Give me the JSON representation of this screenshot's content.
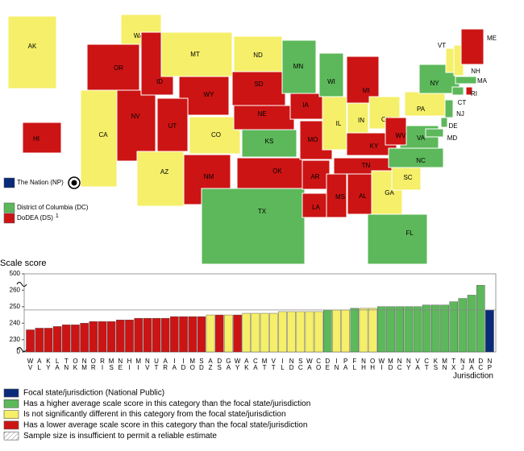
{
  "map": {
    "states": [
      {
        "label": "WA",
        "color": "#f5ef6a"
      },
      {
        "label": "OR",
        "color": "#cc1414"
      },
      {
        "label": "CA",
        "color": "#f5ef6a"
      },
      {
        "label": "NV",
        "color": "#cc1414"
      },
      {
        "label": "ID",
        "color": "#cc1414"
      },
      {
        "label": "MT",
        "color": "#f5ef6a"
      },
      {
        "label": "WY",
        "color": "#cc1414"
      },
      {
        "label": "UT",
        "color": "#cc1414"
      },
      {
        "label": "AZ",
        "color": "#f5ef6a"
      },
      {
        "label": "CO",
        "color": "#f5ef6a"
      },
      {
        "label": "NM",
        "color": "#cc1414"
      },
      {
        "label": "ND",
        "color": "#f5ef6a"
      },
      {
        "label": "SD",
        "color": "#cc1414"
      },
      {
        "label": "NE",
        "color": "#cc1414"
      },
      {
        "label": "KS",
        "color": "#5cb85a"
      },
      {
        "label": "OK",
        "color": "#cc1414"
      },
      {
        "label": "TX",
        "color": "#5cb85a"
      },
      {
        "label": "MN",
        "color": "#5cb85a"
      },
      {
        "label": "IA",
        "color": "#cc1414"
      },
      {
        "label": "MO",
        "color": "#cc1414"
      },
      {
        "label": "AR",
        "color": "#cc1414"
      },
      {
        "label": "LA",
        "color": "#cc1414"
      },
      {
        "label": "WI",
        "color": "#5cb85a"
      },
      {
        "label": "IL",
        "color": "#f5ef6a"
      },
      {
        "label": "MI",
        "color": "#cc1414"
      },
      {
        "label": "IN",
        "color": "#f5ef6a"
      },
      {
        "label": "OH",
        "color": "#f5ef6a"
      },
      {
        "label": "KY",
        "color": "#cc1414"
      },
      {
        "label": "TN",
        "color": "#cc1414"
      },
      {
        "label": "MS",
        "color": "#cc1414"
      },
      {
        "label": "AL",
        "color": "#cc1414"
      },
      {
        "label": "GA",
        "color": "#f5ef6a"
      },
      {
        "label": "FL",
        "color": "#5cb85a"
      },
      {
        "label": "SC",
        "color": "#f5ef6a"
      },
      {
        "label": "NC",
        "color": "#5cb85a"
      },
      {
        "label": "VA",
        "color": "#5cb85a"
      },
      {
        "label": "WV",
        "color": "#cc1414"
      },
      {
        "label": "PA",
        "color": "#f5ef6a"
      },
      {
        "label": "NY",
        "color": "#5cb85a"
      },
      {
        "label": "VT",
        "color": "#f5ef6a"
      },
      {
        "label": "NH",
        "color": "#f5ef6a"
      },
      {
        "label": "ME",
        "color": "#cc1414"
      },
      {
        "label": "MA",
        "color": "#5cb85a"
      },
      {
        "label": "CT",
        "color": "#5cb85a"
      },
      {
        "label": "RI",
        "color": "#cc1414"
      },
      {
        "label": "NJ",
        "color": "#5cb85a"
      },
      {
        "label": "DE",
        "color": "#5cb85a"
      },
      {
        "label": "MD",
        "color": "#5cb85a"
      },
      {
        "label": "AK",
        "color": "#f5ef6a"
      },
      {
        "label": "HI",
        "color": "#cc1414"
      }
    ],
    "key": [
      {
        "label": "The Nation (NP)",
        "color": "#0a2a7a"
      },
      {
        "label": "District of Columbia (DC)",
        "color": "#5cb85a"
      },
      {
        "label": "DoDEA (DS)",
        "color": "#cc1414",
        "note": "1"
      }
    ]
  },
  "chart_data": {
    "type": "bar",
    "y_label": "Scale score",
    "x_label": "Jurisdiction",
    "categories": [
      "WV",
      "AL",
      "KY",
      "LA",
      "TN",
      "OK",
      "NM",
      "OR",
      "RI",
      "MS",
      "NE",
      "HI",
      "MI",
      "NV",
      "UT",
      "AR",
      "IA",
      "ID",
      "MO",
      "SD",
      "AZ",
      "DS",
      "GA",
      "WY",
      "AK",
      "CA",
      "MT",
      "VT",
      "IL",
      "ND",
      "SC",
      "WA",
      "CO",
      "DE",
      "IN",
      "PA",
      "FL",
      "NH",
      "OH",
      "WI",
      "MD",
      "NC",
      "NY",
      "VA",
      "CT",
      "KS",
      "MN",
      "TX",
      "NJ",
      "MA",
      "DC",
      "NP"
    ],
    "values": [
      236,
      237,
      237,
      238,
      239,
      239,
      240,
      241,
      241,
      241,
      242,
      242,
      243,
      243,
      243,
      243,
      244,
      244,
      244,
      244,
      245,
      245,
      245,
      245,
      246,
      246,
      246,
      246,
      247,
      247,
      247,
      247,
      247,
      248,
      248,
      248,
      249,
      249,
      249,
      250,
      250,
      250,
      250,
      250,
      251,
      251,
      251,
      253,
      255,
      257,
      263,
      248
    ],
    "colors": [
      "#cc1414",
      "#cc1414",
      "#cc1414",
      "#cc1414",
      "#cc1414",
      "#cc1414",
      "#cc1414",
      "#cc1414",
      "#cc1414",
      "#cc1414",
      "#cc1414",
      "#cc1414",
      "#cc1414",
      "#cc1414",
      "#cc1414",
      "#cc1414",
      "#cc1414",
      "#cc1414",
      "#cc1414",
      "#cc1414",
      "#f5ef6a",
      "#cc1414",
      "#f5ef6a",
      "#cc1414",
      "#f5ef6a",
      "#f5ef6a",
      "#f5ef6a",
      "#f5ef6a",
      "#f5ef6a",
      "#f5ef6a",
      "#f5ef6a",
      "#f5ef6a",
      "#f5ef6a",
      "#5cb85a",
      "#f5ef6a",
      "#f5ef6a",
      "#5cb85a",
      "#f5ef6a",
      "#f5ef6a",
      "#5cb85a",
      "#5cb85a",
      "#5cb85a",
      "#5cb85a",
      "#5cb85a",
      "#5cb85a",
      "#5cb85a",
      "#5cb85a",
      "#5cb85a",
      "#5cb85a",
      "#5cb85a",
      "#5cb85a",
      "#0a2a7a"
    ],
    "ylim": [
      226,
      266
    ],
    "yticks": [
      230,
      240,
      250,
      260
    ],
    "axis_break_ticks": [
      0,
      500
    ],
    "focal_line": 248,
    "legend": [
      {
        "name": "Focal state/jurisdiction (National Public)",
        "color": "#0a2a7a"
      },
      {
        "name": "Has a higher average scale score in this category than the focal state/jurisdiction",
        "color": "#5cb85a"
      },
      {
        "name": "Is not significantly different in this category from the focal state/jurisdiction",
        "color": "#f5ef6a"
      },
      {
        "name": "Has a lower average scale score in this category than the focal state/jurisdiction",
        "color": "#cc1414"
      },
      {
        "name": "Sample size is insufficient to permit a reliable estimate",
        "pattern": "hatched"
      }
    ]
  }
}
